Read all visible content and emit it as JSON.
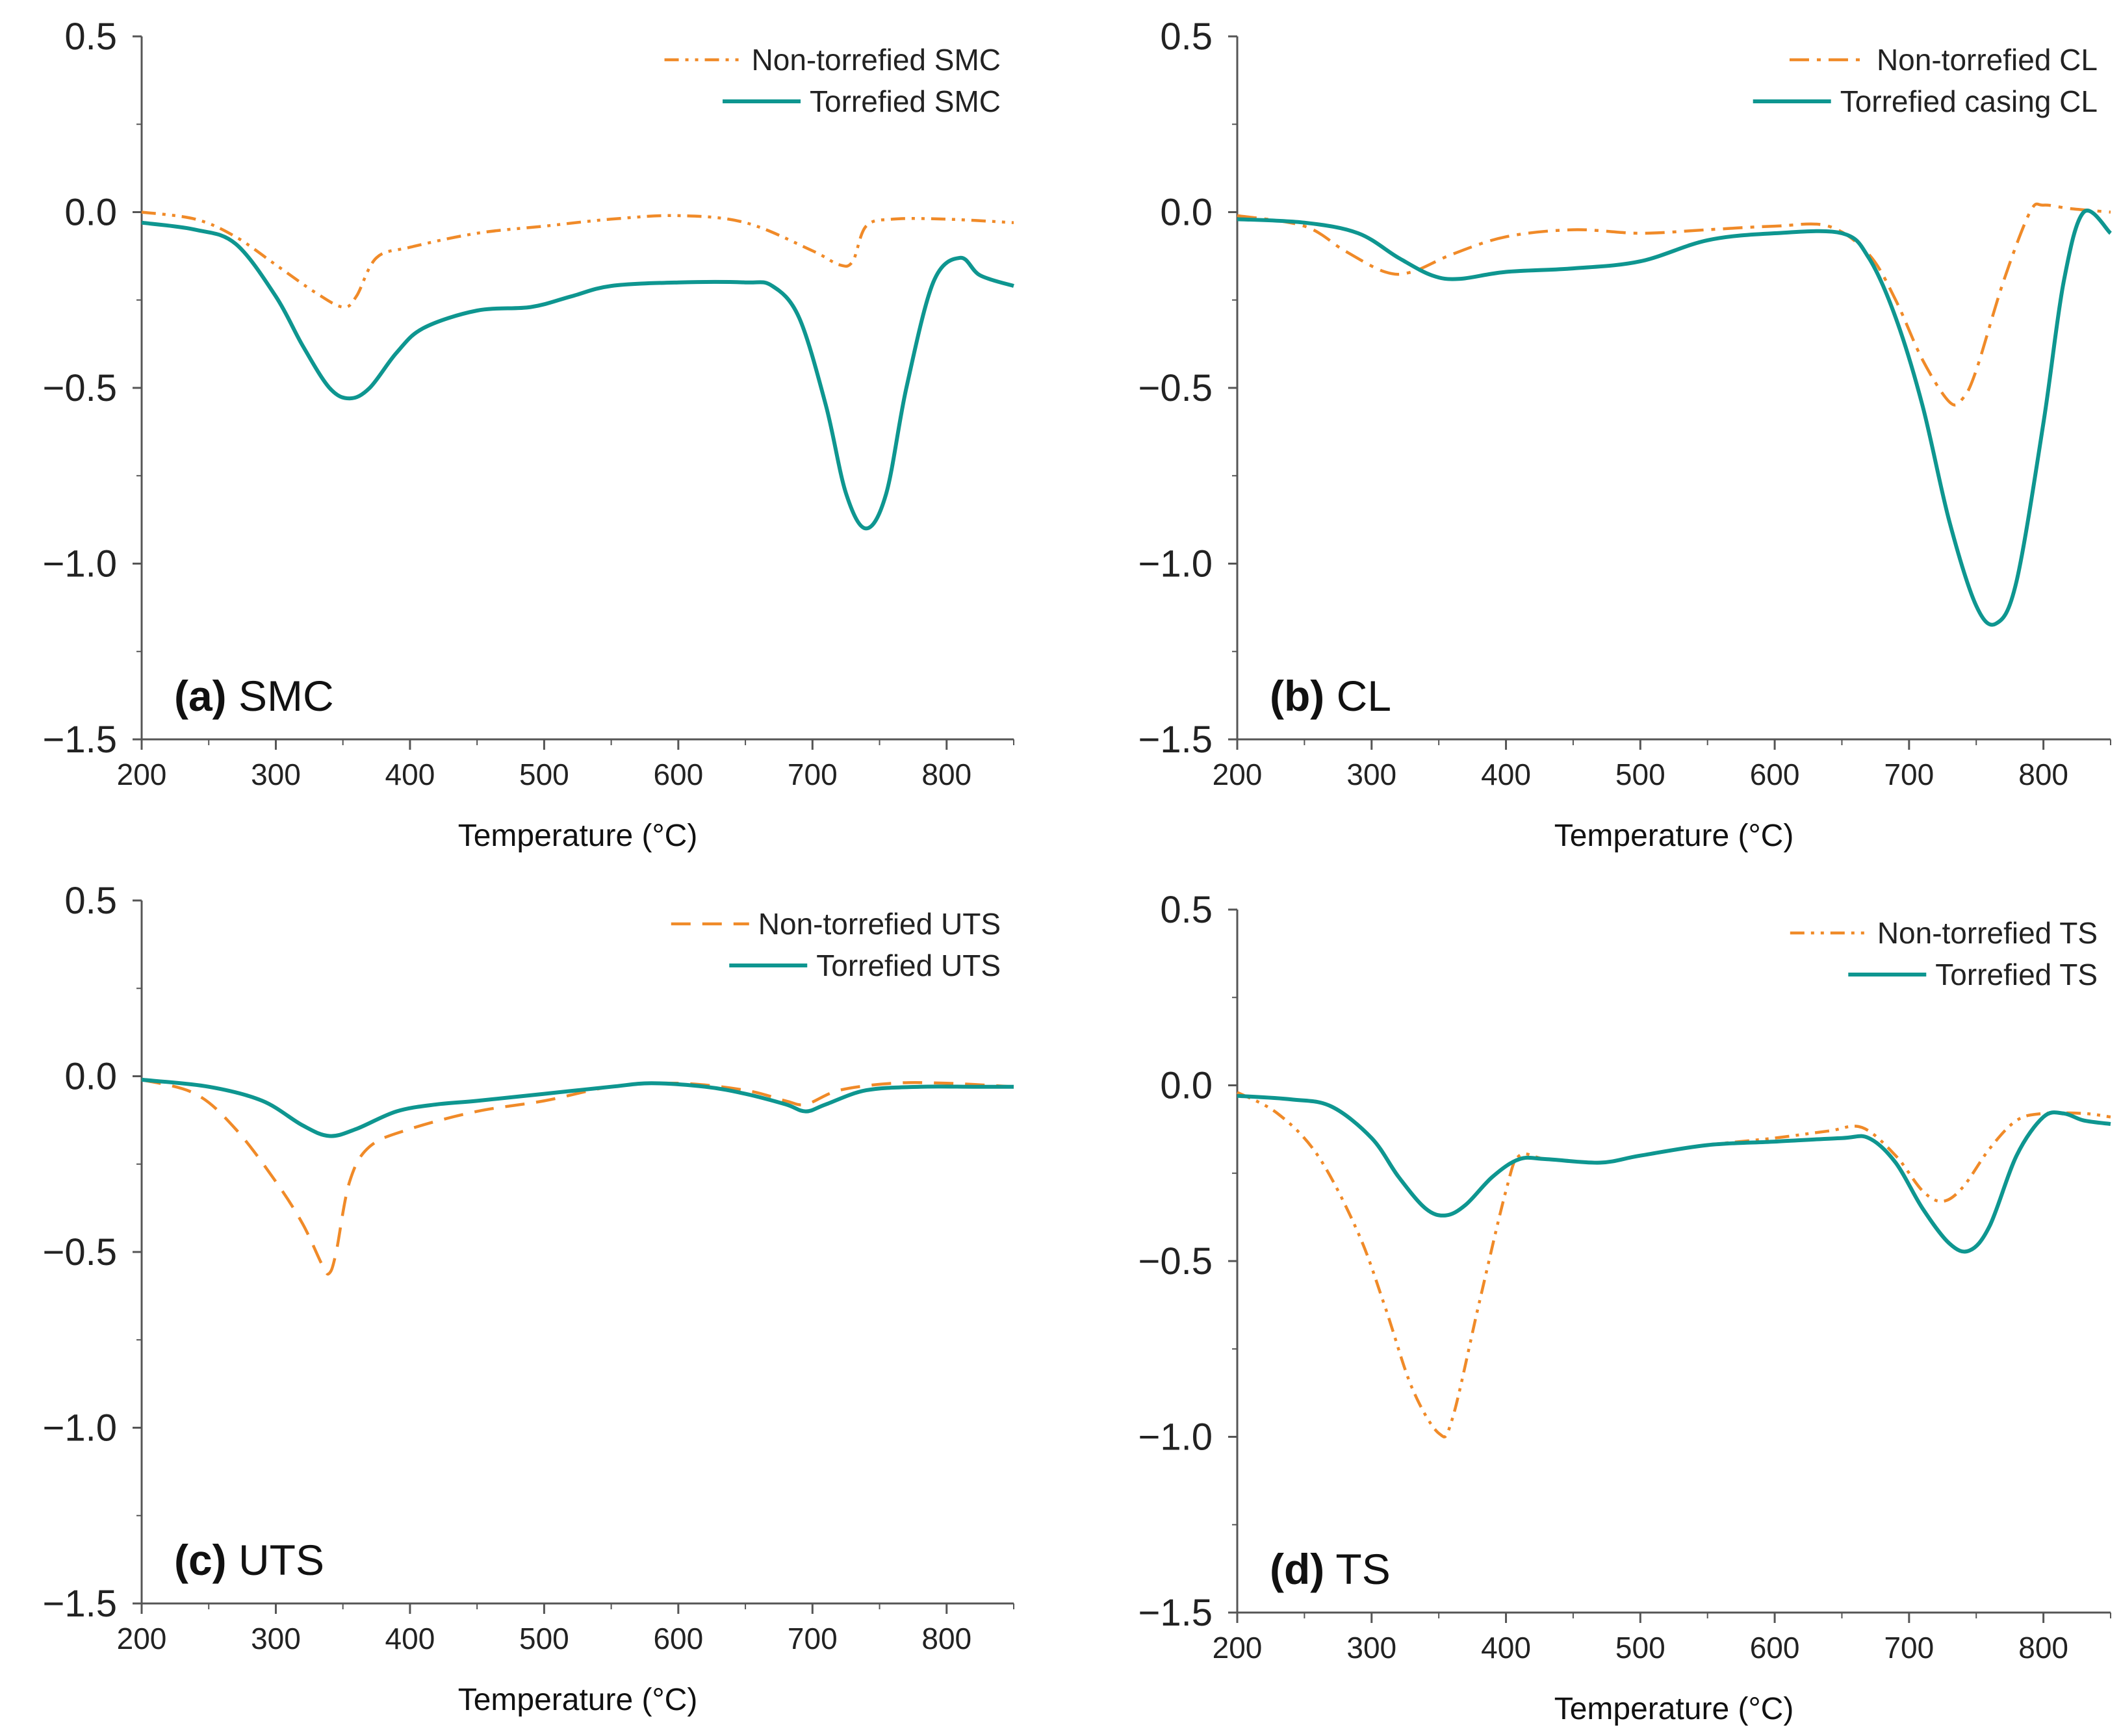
{
  "colors": {
    "torrefied": "#0e9690",
    "non_torrefied": "#f08a28",
    "axis": "#555555"
  },
  "chart_data": [
    {
      "type": "line",
      "panel_letter": "(a)",
      "panel_name": "SMC",
      "xlabel": "Temperature (°C)",
      "ylabel": "",
      "xlim": [
        200,
        850
      ],
      "ylim": [
        -1.5,
        0.5
      ],
      "xticks": [
        "200",
        "300",
        "400",
        "500",
        "600",
        "700",
        "800"
      ],
      "yticks": [
        "0.5",
        "0.0",
        "−0.5",
        "−1.0",
        "−1.5"
      ],
      "legend_position": "top-right",
      "series": [
        {
          "name": "Non-torrefied SMC",
          "style": "dash-dot-dot",
          "x": [
            200,
            240,
            270,
            300,
            330,
            350,
            360,
            375,
            400,
            450,
            500,
            550,
            600,
            650,
            700,
            720,
            730,
            740,
            760,
            800,
            850
          ],
          "y": [
            0.0,
            -0.02,
            -0.07,
            -0.15,
            -0.23,
            -0.27,
            -0.24,
            -0.13,
            -0.1,
            -0.06,
            -0.04,
            -0.02,
            -0.01,
            -0.03,
            -0.11,
            -0.15,
            -0.14,
            -0.04,
            -0.02,
            -0.02,
            -0.03
          ]
        },
        {
          "name": "Torrefied SMC",
          "style": "solid",
          "x": [
            200,
            240,
            270,
            300,
            320,
            340,
            355,
            370,
            390,
            410,
            450,
            490,
            520,
            550,
            600,
            650,
            670,
            690,
            710,
            725,
            740,
            755,
            770,
            790,
            810,
            825,
            850
          ],
          "y": [
            -0.03,
            -0.05,
            -0.09,
            -0.24,
            -0.38,
            -0.5,
            -0.53,
            -0.5,
            -0.4,
            -0.33,
            -0.28,
            -0.27,
            -0.24,
            -0.21,
            -0.2,
            -0.2,
            -0.21,
            -0.3,
            -0.55,
            -0.8,
            -0.9,
            -0.8,
            -0.5,
            -0.2,
            -0.13,
            -0.18,
            -0.21
          ]
        }
      ]
    },
    {
      "type": "line",
      "panel_letter": "(b)",
      "panel_name": "CL",
      "xlabel": "Temperature (°C)",
      "ylabel": "",
      "xlim": [
        200,
        850
      ],
      "ylim": [
        -1.5,
        0.5
      ],
      "xticks": [
        "200",
        "300",
        "400",
        "500",
        "600",
        "700",
        "800"
      ],
      "yticks": [
        "0.5",
        "0.0",
        "−0.5",
        "−1.0",
        "−1.5"
      ],
      "legend_position": "top-right",
      "series": [
        {
          "name": "Non-torrefied CL",
          "style": "dash-dot",
          "x": [
            200,
            250,
            280,
            310,
            330,
            360,
            400,
            450,
            500,
            550,
            600,
            640,
            670,
            690,
            710,
            730,
            740,
            750,
            770,
            790,
            800,
            820,
            850
          ],
          "y": [
            -0.01,
            -0.04,
            -0.11,
            -0.17,
            -0.17,
            -0.12,
            -0.07,
            -0.05,
            -0.06,
            -0.05,
            -0.04,
            -0.04,
            -0.12,
            -0.25,
            -0.42,
            -0.54,
            -0.53,
            -0.45,
            -0.2,
            0.0,
            0.02,
            0.01,
            0.0
          ]
        },
        {
          "name": "Torrefied casing CL",
          "style": "solid",
          "x": [
            200,
            250,
            290,
            320,
            345,
            365,
            400,
            450,
            500,
            550,
            600,
            650,
            670,
            690,
            710,
            730,
            750,
            765,
            780,
            800,
            815,
            830,
            850
          ],
          "y": [
            -0.02,
            -0.03,
            -0.06,
            -0.13,
            -0.18,
            -0.19,
            -0.17,
            -0.16,
            -0.14,
            -0.08,
            -0.06,
            -0.06,
            -0.13,
            -0.3,
            -0.55,
            -0.88,
            -1.12,
            -1.17,
            -1.05,
            -0.6,
            -0.2,
            0.0,
            -0.06
          ]
        }
      ]
    },
    {
      "type": "line",
      "panel_letter": "(c)",
      "panel_name": "UTS",
      "xlabel": "Temperature (°C)",
      "ylabel": "",
      "xlim": [
        200,
        850
      ],
      "ylim": [
        -1.5,
        0.5
      ],
      "xticks": [
        "200",
        "300",
        "400",
        "500",
        "600",
        "700",
        "800"
      ],
      "yticks": [
        "0.5",
        "0.0",
        "−0.5",
        "−1.0",
        "−1.5"
      ],
      "legend_position": "top-right",
      "series": [
        {
          "name": "Non-torrefied UTS",
          "style": "dashed",
          "x": [
            200,
            240,
            270,
            300,
            320,
            335,
            340,
            345,
            355,
            370,
            400,
            450,
            500,
            550,
            600,
            650,
            680,
            695,
            720,
            760,
            800,
            850
          ],
          "y": [
            -0.01,
            -0.05,
            -0.15,
            -0.3,
            -0.42,
            -0.54,
            -0.56,
            -0.5,
            -0.3,
            -0.2,
            -0.15,
            -0.1,
            -0.07,
            -0.03,
            -0.02,
            -0.04,
            -0.07,
            -0.08,
            -0.04,
            -0.02,
            -0.02,
            -0.03
          ]
        },
        {
          "name": "Torrefied UTS",
          "style": "solid",
          "x": [
            200,
            250,
            290,
            320,
            340,
            360,
            390,
            420,
            450,
            500,
            550,
            580,
            620,
            650,
            680,
            695,
            710,
            740,
            780,
            820,
            850
          ],
          "y": [
            -0.01,
            -0.03,
            -0.07,
            -0.14,
            -0.17,
            -0.15,
            -0.1,
            -0.08,
            -0.07,
            -0.05,
            -0.03,
            -0.02,
            -0.03,
            -0.05,
            -0.08,
            -0.1,
            -0.08,
            -0.04,
            -0.03,
            -0.03,
            -0.03
          ]
        }
      ]
    },
    {
      "type": "line",
      "panel_letter": "(d)",
      "panel_name": "TS",
      "xlabel": "Temperature (°C)",
      "ylabel": "",
      "xlim": [
        200,
        850
      ],
      "ylim": [
        -1.5,
        0.5
      ],
      "xticks": [
        "200",
        "300",
        "400",
        "500",
        "600",
        "700",
        "800"
      ],
      "yticks": [
        "0.5",
        "0.0",
        "−0.5",
        "−1.0",
        "−1.5"
      ],
      "legend_position": "top-right",
      "series": [
        {
          "name": "Non-torrefied TS",
          "style": "dash-dot-dot",
          "x": [
            200,
            230,
            260,
            290,
            310,
            330,
            350,
            360,
            380,
            400,
            410,
            430,
            470,
            500,
            550,
            600,
            640,
            665,
            690,
            710,
            725,
            740,
            760,
            780,
            800,
            830,
            850
          ],
          "y": [
            -0.02,
            -0.08,
            -0.2,
            -0.42,
            -0.63,
            -0.86,
            -0.99,
            -0.95,
            -0.62,
            -0.3,
            -0.2,
            -0.21,
            -0.22,
            -0.2,
            -0.17,
            -0.15,
            -0.13,
            -0.12,
            -0.2,
            -0.3,
            -0.33,
            -0.29,
            -0.18,
            -0.1,
            -0.08,
            -0.08,
            -0.09
          ]
        },
        {
          "name": "Torrefied TS",
          "style": "solid",
          "x": [
            200,
            240,
            270,
            300,
            320,
            340,
            355,
            370,
            390,
            410,
            430,
            470,
            500,
            550,
            600,
            650,
            670,
            690,
            710,
            730,
            745,
            760,
            780,
            800,
            815,
            830,
            850
          ],
          "y": [
            -0.03,
            -0.04,
            -0.06,
            -0.15,
            -0.26,
            -0.35,
            -0.37,
            -0.34,
            -0.26,
            -0.21,
            -0.21,
            -0.22,
            -0.2,
            -0.17,
            -0.16,
            -0.15,
            -0.15,
            -0.22,
            -0.35,
            -0.45,
            -0.47,
            -0.4,
            -0.2,
            -0.09,
            -0.08,
            -0.1,
            -0.11
          ]
        }
      ]
    }
  ]
}
